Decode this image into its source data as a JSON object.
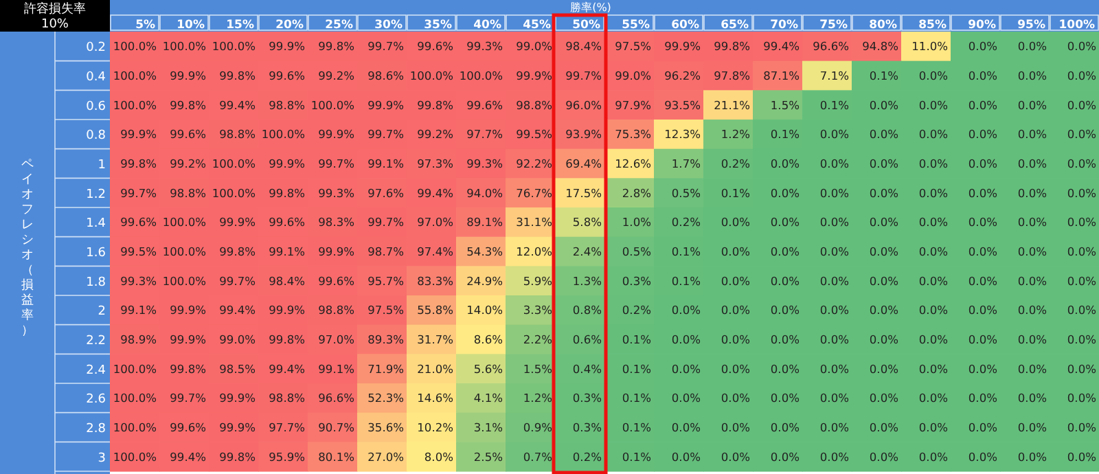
{
  "chart_data": {
    "type": "heatmap",
    "title": "許容損失率",
    "subtitle": "10%",
    "xlabel": "勝率(%)",
    "ylabel": "ペイオフレシオ（損益率）",
    "categories": [
      "5%",
      "10%",
      "15%",
      "20%",
      "25%",
      "30%",
      "35%",
      "40%",
      "45%",
      "50%",
      "55%",
      "60%",
      "65%",
      "70%",
      "75%",
      "80%",
      "85%",
      "90%",
      "95%",
      "100%"
    ],
    "y_categories": [
      "0.2",
      "0.4",
      "0.6",
      "0.8",
      "1",
      "1.2",
      "1.4",
      "1.6",
      "1.8",
      "2",
      "2.2",
      "2.4",
      "2.6",
      "2.8",
      "3"
    ],
    "cells": [
      [
        100.0,
        100.0,
        100.0,
        99.9,
        99.8,
        99.7,
        99.6,
        99.3,
        99.0,
        98.4,
        97.5,
        99.9,
        99.8,
        99.4,
        96.6,
        94.8,
        11.0,
        0.0,
        0.0,
        0.0
      ],
      [
        100.0,
        99.9,
        99.8,
        99.6,
        99.2,
        98.6,
        100.0,
        100.0,
        99.9,
        99.7,
        99.0,
        96.2,
        97.8,
        87.1,
        7.1,
        0.1,
        0.0,
        0.0,
        0.0,
        0.0
      ],
      [
        100.0,
        99.8,
        99.4,
        98.8,
        100.0,
        99.9,
        99.8,
        99.6,
        98.8,
        96.0,
        97.9,
        93.5,
        21.1,
        1.5,
        0.1,
        0.0,
        0.0,
        0.0,
        0.0,
        0.0
      ],
      [
        99.9,
        99.6,
        98.8,
        100.0,
        99.9,
        99.7,
        99.2,
        97.7,
        99.5,
        93.9,
        75.3,
        12.3,
        1.2,
        0.1,
        0.0,
        0.0,
        0.0,
        0.0,
        0.0,
        0.0
      ],
      [
        99.8,
        99.2,
        100.0,
        99.9,
        99.7,
        99.1,
        97.3,
        99.3,
        92.2,
        69.4,
        12.6,
        1.7,
        0.2,
        0.0,
        0.0,
        0.0,
        0.0,
        0.0,
        0.0,
        0.0
      ],
      [
        99.7,
        98.8,
        100.0,
        99.8,
        99.3,
        97.6,
        99.4,
        94.0,
        76.7,
        17.5,
        2.8,
        0.5,
        0.1,
        0.0,
        0.0,
        0.0,
        0.0,
        0.0,
        0.0,
        0.0
      ],
      [
        99.6,
        100.0,
        99.9,
        99.6,
        98.3,
        99.7,
        97.0,
        89.1,
        31.1,
        5.8,
        1.0,
        0.2,
        0.0,
        0.0,
        0.0,
        0.0,
        0.0,
        0.0,
        0.0,
        0.0
      ],
      [
        99.5,
        100.0,
        99.8,
        99.1,
        99.9,
        98.7,
        97.4,
        54.3,
        12.0,
        2.4,
        0.5,
        0.1,
        0.0,
        0.0,
        0.0,
        0.0,
        0.0,
        0.0,
        0.0,
        0.0
      ],
      [
        99.3,
        100.0,
        99.7,
        98.4,
        99.6,
        95.7,
        83.3,
        24.9,
        5.9,
        1.3,
        0.3,
        0.1,
        0.0,
        0.0,
        0.0,
        0.0,
        0.0,
        0.0,
        0.0,
        0.0
      ],
      [
        99.1,
        99.9,
        99.4,
        99.9,
        98.8,
        97.5,
        55.8,
        14.0,
        3.3,
        0.8,
        0.2,
        0.0,
        0.0,
        0.0,
        0.0,
        0.0,
        0.0,
        0.0,
        0.0,
        0.0
      ],
      [
        98.9,
        99.9,
        99.0,
        99.8,
        97.0,
        89.3,
        31.7,
        8.6,
        2.2,
        0.6,
        0.1,
        0.0,
        0.0,
        0.0,
        0.0,
        0.0,
        0.0,
        0.0,
        0.0,
        0.0
      ],
      [
        100.0,
        99.8,
        98.5,
        99.4,
        99.1,
        71.9,
        21.0,
        5.6,
        1.5,
        0.4,
        0.1,
        0.0,
        0.0,
        0.0,
        0.0,
        0.0,
        0.0,
        0.0,
        0.0,
        0.0
      ],
      [
        100.0,
        99.7,
        99.9,
        98.8,
        96.6,
        52.3,
        14.6,
        4.1,
        1.2,
        0.3,
        0.1,
        0.0,
        0.0,
        0.0,
        0.0,
        0.0,
        0.0,
        0.0,
        0.0,
        0.0
      ],
      [
        100.0,
        99.6,
        99.9,
        97.7,
        90.7,
        35.6,
        10.2,
        3.1,
        0.9,
        0.3,
        0.1,
        0.0,
        0.0,
        0.0,
        0.0,
        0.0,
        0.0,
        0.0,
        0.0,
        0.0
      ],
      [
        100.0,
        99.4,
        99.8,
        95.9,
        80.1,
        27.0,
        8.0,
        2.5,
        0.7,
        0.2,
        0.1,
        0.0,
        0.0,
        0.0,
        0.0,
        0.0,
        0.0,
        0.0,
        0.0,
        0.0
      ]
    ],
    "cell_labels": [
      [
        "100.0%",
        "100.0%",
        "100.0%",
        "99.9%",
        "99.8%",
        "99.7%",
        "99.6%",
        "99.3%",
        "99.0%",
        "98.4%",
        "97.5%",
        "99.9%",
        "99.8%",
        "99.4%",
        "96.6%",
        "94.8%",
        "11.0%",
        "0.0%",
        "0.0%",
        "0.0%"
      ],
      [
        "100.0%",
        "99.9%",
        "99.8%",
        "99.6%",
        "99.2%",
        "98.6%",
        "100.0%",
        "100.0%",
        "99.9%",
        "99.7%",
        "99.0%",
        "96.2%",
        "97.8%",
        "87.1%",
        "7.1%",
        "0.1%",
        "0.0%",
        "0.0%",
        "0.0%",
        "0.0%"
      ],
      [
        "100.0%",
        "99.8%",
        "99.4%",
        "98.8%",
        "100.0%",
        "99.9%",
        "99.8%",
        "99.6%",
        "98.8%",
        "96.0%",
        "97.9%",
        "93.5%",
        "21.1%",
        "1.5%",
        "0.1%",
        "0.0%",
        "0.0%",
        "0.0%",
        "0.0%",
        "0.0%"
      ],
      [
        "99.9%",
        "99.6%",
        "98.8%",
        "100.0%",
        "99.9%",
        "99.7%",
        "99.2%",
        "97.7%",
        "99.5%",
        "93.9%",
        "75.3%",
        "12.3%",
        "1.2%",
        "0.1%",
        "0.0%",
        "0.0%",
        "0.0%",
        "0.0%",
        "0.0%",
        "0.0%"
      ],
      [
        "99.8%",
        "99.2%",
        "100.0%",
        "99.9%",
        "99.7%",
        "99.1%",
        "97.3%",
        "99.3%",
        "92.2%",
        "69.4%",
        "12.6%",
        "1.7%",
        "0.2%",
        "0.0%",
        "0.0%",
        "0.0%",
        "0.0%",
        "0.0%",
        "0.0%",
        "0.0%"
      ],
      [
        "99.7%",
        "98.8%",
        "100.0%",
        "99.8%",
        "99.3%",
        "97.6%",
        "99.4%",
        "94.0%",
        "76.7%",
        "17.5%",
        "2.8%",
        "0.5%",
        "0.1%",
        "0.0%",
        "0.0%",
        "0.0%",
        "0.0%",
        "0.0%",
        "0.0%",
        "0.0%"
      ],
      [
        "99.6%",
        "100.0%",
        "99.9%",
        "99.6%",
        "98.3%",
        "99.7%",
        "97.0%",
        "89.1%",
        "31.1%",
        "5.8%",
        "1.0%",
        "0.2%",
        "0.0%",
        "0.0%",
        "0.0%",
        "0.0%",
        "0.0%",
        "0.0%",
        "0.0%",
        "0.0%"
      ],
      [
        "99.5%",
        "100.0%",
        "99.8%",
        "99.1%",
        "99.9%",
        "98.7%",
        "97.4%",
        "54.3%",
        "12.0%",
        "2.4%",
        "0.5%",
        "0.1%",
        "0.0%",
        "0.0%",
        "0.0%",
        "0.0%",
        "0.0%",
        "0.0%",
        "0.0%",
        "0.0%"
      ],
      [
        "99.3%",
        "100.0%",
        "99.7%",
        "98.4%",
        "99.6%",
        "95.7%",
        "83.3%",
        "24.9%",
        "5.9%",
        "1.3%",
        "0.3%",
        "0.1%",
        "0.0%",
        "0.0%",
        "0.0%",
        "0.0%",
        "0.0%",
        "0.0%",
        "0.0%",
        "0.0%"
      ],
      [
        "99.1%",
        "99.9%",
        "99.4%",
        "99.9%",
        "98.8%",
        "97.5%",
        "55.8%",
        "14.0%",
        "3.3%",
        "0.8%",
        "0.2%",
        "0.0%",
        "0.0%",
        "0.0%",
        "0.0%",
        "0.0%",
        "0.0%",
        "0.0%",
        "0.0%",
        "0.0%"
      ],
      [
        "98.9%",
        "99.9%",
        "99.0%",
        "99.8%",
        "97.0%",
        "89.3%",
        "31.7%",
        "8.6%",
        "2.2%",
        "0.6%",
        "0.1%",
        "0.0%",
        "0.0%",
        "0.0%",
        "0.0%",
        "0.0%",
        "0.0%",
        "0.0%",
        "0.0%",
        "0.0%"
      ],
      [
        "100.0%",
        "99.8%",
        "98.5%",
        "99.4%",
        "99.1%",
        "71.9%",
        "21.0%",
        "5.6%",
        "1.5%",
        "0.4%",
        "0.1%",
        "0.0%",
        "0.0%",
        "0.0%",
        "0.0%",
        "0.0%",
        "0.0%",
        "0.0%",
        "0.0%",
        "0.0%"
      ],
      [
        "100.0%",
        "99.7%",
        "99.9%",
        "98.8%",
        "96.6%",
        "52.3%",
        "14.6%",
        "4.1%",
        "1.2%",
        "0.3%",
        "0.1%",
        "0.0%",
        "0.0%",
        "0.0%",
        "0.0%",
        "0.0%",
        "0.0%",
        "0.0%",
        "0.0%",
        "0.0%"
      ],
      [
        "100.0%",
        "99.6%",
        "99.9%",
        "97.7%",
        "90.7%",
        "35.6%",
        "10.2%",
        "3.1%",
        "0.9%",
        "0.3%",
        "0.1%",
        "0.0%",
        "0.0%",
        "0.0%",
        "0.0%",
        "0.0%",
        "0.0%",
        "0.0%",
        "0.0%",
        "0.0%"
      ],
      [
        "100.0%",
        "99.4%",
        "99.8%",
        "95.9%",
        "80.1%",
        "27.0%",
        "8.0%",
        "2.5%",
        "0.7%",
        "0.2%",
        "0.1%",
        "0.0%",
        "0.0%",
        "0.0%",
        "0.0%",
        "0.0%",
        "0.0%",
        "0.0%",
        "0.0%",
        "0.0%"
      ]
    ]
  }
}
